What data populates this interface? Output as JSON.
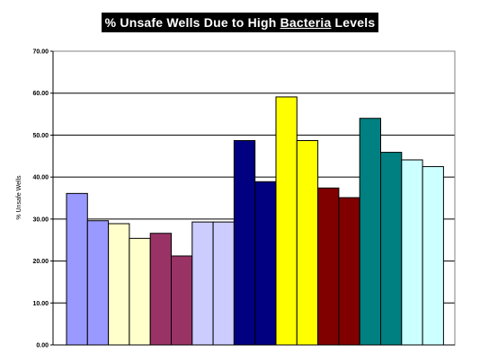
{
  "chart_data": {
    "type": "bar",
    "title": {
      "prefix": "%  Unsafe Wells Due to High ",
      "underlined": "Bacteria",
      "suffix": " Levels"
    },
    "ylabel": "% Unsafe Wells",
    "ylim": [
      0,
      70
    ],
    "yticks": [
      "0.00",
      "10.00",
      "20.00",
      "30.00",
      "40.00",
      "50.00",
      "60.00",
      "70.00"
    ],
    "grid": true,
    "legend": "none",
    "bars": [
      {
        "value": 36.1,
        "color": "#9999ff"
      },
      {
        "value": 29.6,
        "color": "#9999ff"
      },
      {
        "value": 28.9,
        "color": "#ffffcc"
      },
      {
        "value": 25.4,
        "color": "#ffffcc"
      },
      {
        "value": 26.6,
        "color": "#993366"
      },
      {
        "value": 21.2,
        "color": "#993366"
      },
      {
        "value": 29.3,
        "color": "#ccccff"
      },
      {
        "value": 29.3,
        "color": "#ccccff"
      },
      {
        "value": 48.7,
        "color": "#000080"
      },
      {
        "value": 38.9,
        "color": "#000080"
      },
      {
        "value": 59.1,
        "color": "#ffff00"
      },
      {
        "value": 48.7,
        "color": "#ffff00"
      },
      {
        "value": 37.4,
        "color": "#800000"
      },
      {
        "value": 35.1,
        "color": "#800000"
      },
      {
        "value": 54.0,
        "color": "#008080"
      },
      {
        "value": 45.9,
        "color": "#008080"
      },
      {
        "value": 44.1,
        "color": "#ccffff"
      },
      {
        "value": 42.5,
        "color": "#ccffff"
      }
    ]
  }
}
